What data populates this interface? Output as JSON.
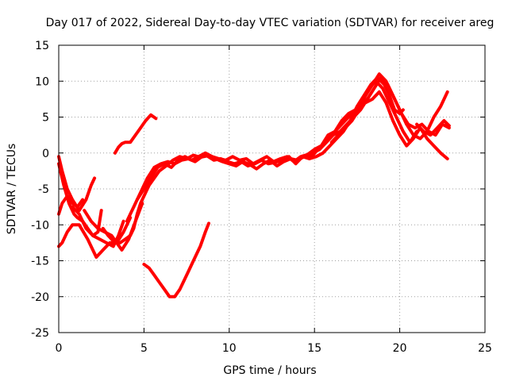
{
  "chart_data": {
    "type": "line",
    "title": "Day 017 of 2022, Sidereal Day-to-day VTEC variation (SDTVAR) for receiver areg",
    "xlabel": "GPS time / hours",
    "ylabel": "SDTVAR / TECUs",
    "xlim": [
      0,
      25
    ],
    "ylim": [
      -25,
      15
    ],
    "xticks": [
      0,
      5,
      10,
      15,
      20,
      25
    ],
    "yticks": [
      -25,
      -20,
      -15,
      -10,
      -5,
      0,
      5,
      10,
      15
    ],
    "xtick_labels": [
      "0",
      "5",
      "10",
      "15",
      "20",
      "25"
    ],
    "ytick_labels": [
      "-25",
      "-20",
      "-15",
      "-10",
      "-5",
      "0",
      "5",
      "10",
      "15"
    ],
    "grid": true,
    "series_color": "#ff0000",
    "series": [
      {
        "x": [
          0.0,
          0.2,
          0.5,
          0.8,
          1.2,
          1.6,
          1.9,
          2.1
        ],
        "y": [
          -0.5,
          -2.5,
          -5.0,
          -6.5,
          -8.0,
          -6.5,
          -4.5,
          -3.5
        ]
      },
      {
        "x": [
          0.0,
          0.3,
          0.6,
          0.9,
          1.1,
          1.4,
          1.7,
          2.0,
          2.3,
          2.5
        ],
        "y": [
          -1.5,
          -4.5,
          -7.0,
          -8.5,
          -9.0,
          -9.5,
          -10.5,
          -11.5,
          -11.0,
          -8.0
        ]
      },
      {
        "x": [
          0.0,
          0.2,
          0.5,
          0.8,
          1.2,
          1.7,
          2.2,
          2.6,
          3.0,
          3.4,
          3.8,
          4.2
        ],
        "y": [
          -13.0,
          -12.5,
          -11.0,
          -10.0,
          -10.0,
          -12.0,
          -14.5,
          -13.5,
          -12.5,
          -12.5,
          -11.0,
          -9.0
        ]
      },
      {
        "x": [
          0.0,
          0.2,
          0.5,
          0.8,
          1.1,
          1.4
        ],
        "y": [
          -8.5,
          -7.0,
          -6.0,
          -7.0,
          -7.5,
          -6.5
        ]
      },
      {
        "x": [
          0.8,
          1.2,
          1.6,
          2.0,
          2.4,
          2.8,
          3.2,
          3.5,
          3.8
        ],
        "y": [
          -7.5,
          -8.5,
          -10.5,
          -11.5,
          -12.0,
          -12.5,
          -13.0,
          -11.5,
          -9.5
        ]
      },
      {
        "x": [
          1.5,
          1.9,
          2.3,
          2.7,
          3.1,
          3.4,
          3.7,
          4.1,
          4.5,
          4.9
        ],
        "y": [
          -8.0,
          -9.5,
          -10.5,
          -11.0,
          -11.5,
          -12.5,
          -13.5,
          -12.0,
          -9.5,
          -7.0
        ]
      },
      {
        "x": [
          2.6,
          2.9,
          3.3,
          3.6,
          3.9,
          4.2,
          4.4,
          4.6,
          4.8,
          5.1,
          5.3,
          5.6,
          5.9,
          6.3,
          6.7,
          7.1,
          7.5,
          7.9,
          8.3,
          8.7,
          9.1,
          9.5,
          9.9,
          10.3,
          10.7,
          11.1,
          11.5,
          11.9,
          12.3,
          12.7,
          13.1,
          13.5,
          13.9,
          14.3,
          14.7,
          15.1,
          15.5,
          15.9,
          16.3,
          16.7,
          17.1,
          17.5,
          17.9,
          18.3,
          18.7,
          19.1,
          19.4,
          19.7,
          20.0,
          20.2
        ],
        "y": [
          -10.5,
          -11.5,
          -12.5,
          -12.5,
          -12.0,
          -11.5,
          -10.5,
          -8.5,
          -7.0,
          -5.5,
          -4.5,
          -3.5,
          -2.5,
          -1.8,
          -1.0,
          -0.5,
          -0.8,
          -0.3,
          -0.6,
          -0.4,
          -1.0,
          -0.8,
          -1.2,
          -1.5,
          -1.2,
          -1.8,
          -1.5,
          -1.0,
          -1.5,
          -1.3,
          -1.0,
          -0.5,
          -1.5,
          -0.5,
          -0.8,
          -0.5,
          0.0,
          1.0,
          2.0,
          3.0,
          4.5,
          6.5,
          8.0,
          9.5,
          10.5,
          9.5,
          8.0,
          6.0,
          5.5,
          6.0
        ]
      },
      {
        "x": [
          4.0,
          4.4,
          4.8,
          5.2,
          5.6,
          6.0,
          6.4,
          6.8,
          7.2,
          7.6,
          8.0,
          8.4,
          8.8,
          9.2,
          9.6,
          10.0,
          10.4,
          10.8,
          11.2,
          11.6,
          12.0,
          12.4,
          12.8,
          13.2,
          13.6,
          14.0,
          14.4,
          14.8,
          15.2,
          15.6,
          16.0,
          16.4,
          16.8,
          17.2,
          17.6,
          18.0,
          18.4,
          18.8,
          19.2,
          19.6,
          20.0,
          20.4,
          20.8,
          21.2,
          21.6,
          22.0,
          22.4,
          22.8
        ],
        "y": [
          -9.5,
          -7.5,
          -5.5,
          -3.5,
          -2.0,
          -1.5,
          -1.2,
          -1.5,
          -1.0,
          -0.8,
          -1.2,
          -0.5,
          -0.3,
          -0.8,
          -1.2,
          -1.5,
          -1.8,
          -1.2,
          -1.6,
          -2.2,
          -1.5,
          -1.0,
          -1.8,
          -1.2,
          -0.8,
          -1.0,
          -0.5,
          -0.6,
          0.5,
          1.5,
          2.5,
          3.5,
          4.5,
          5.5,
          6.5,
          7.0,
          7.5,
          8.5,
          7.0,
          4.5,
          2.5,
          1.0,
          2.0,
          3.5,
          2.0,
          1.0,
          0.0,
          -0.8
        ]
      },
      {
        "x": [
          4.6,
          5.0,
          5.4,
          5.8,
          6.2,
          6.6,
          7.0,
          7.4,
          7.8,
          8.2,
          8.6,
          9.0,
          9.4,
          9.8,
          10.2,
          10.6,
          11.0,
          11.4,
          11.8,
          12.2,
          12.6,
          13.0,
          13.4,
          13.8,
          14.2,
          14.6,
          15.0,
          15.4,
          15.8,
          16.2,
          16.6,
          17.0,
          17.4,
          17.8,
          18.2,
          18.6,
          19.0,
          19.4,
          19.8,
          20.2,
          20.6,
          21.0
        ],
        "y": [
          -6.5,
          -5.0,
          -3.5,
          -2.0,
          -1.5,
          -2.0,
          -1.0,
          -0.5,
          -1.0,
          -0.5,
          0.0,
          -0.5,
          -0.8,
          -1.0,
          -0.5,
          -1.0,
          -0.8,
          -1.5,
          -1.0,
          -0.5,
          -1.2,
          -0.8,
          -0.5,
          -1.2,
          -0.5,
          -0.2,
          0.5,
          1.0,
          2.5,
          3.0,
          4.5,
          5.5,
          6.0,
          7.5,
          9.0,
          10.0,
          9.0,
          7.0,
          5.0,
          3.0,
          1.5,
          3.0
        ]
      },
      {
        "x": [
          3.3,
          3.5,
          3.7,
          3.9,
          4.2,
          4.5,
          4.8,
          5.1,
          5.4,
          5.7
        ],
        "y": [
          0.0,
          0.8,
          1.3,
          1.5,
          1.5,
          2.5,
          3.5,
          4.5,
          5.3,
          4.8
        ]
      },
      {
        "x": [
          5.0,
          5.3,
          5.6,
          5.9,
          6.2,
          6.5,
          6.8,
          7.1,
          7.4,
          7.7,
          8.0,
          8.3,
          8.6,
          8.8
        ],
        "y": [
          -15.5,
          -16.0,
          -17.0,
          -18.0,
          -19.0,
          -20.0,
          -20.0,
          -19.0,
          -17.5,
          -16.0,
          -14.5,
          -13.0,
          -11.0,
          -9.8
        ]
      },
      {
        "x": [
          14.5,
          14.9,
          15.3,
          15.7,
          16.1,
          16.5,
          16.9,
          17.3,
          17.7,
          18.1,
          18.5,
          18.9,
          19.3,
          19.7,
          20.1,
          20.5,
          20.9,
          21.3,
          21.7,
          22.1,
          22.5,
          22.9
        ],
        "y": [
          -0.5,
          0.0,
          0.5,
          1.5,
          2.5,
          3.0,
          4.0,
          5.0,
          6.0,
          7.5,
          9.0,
          10.5,
          9.5,
          7.5,
          5.5,
          4.0,
          3.5,
          4.0,
          3.0,
          2.5,
          4.0,
          3.5
        ]
      },
      {
        "x": [
          16.0,
          16.4,
          16.8,
          17.2,
          17.6,
          18.0,
          18.4,
          18.8,
          19.2,
          19.6,
          20.0,
          20.4,
          20.8,
          21.2,
          21.6,
          22.0,
          22.4,
          22.8
        ],
        "y": [
          1.5,
          2.5,
          3.5,
          4.5,
          6.0,
          8.0,
          9.5,
          11.0,
          10.0,
          8.0,
          6.0,
          4.0,
          2.5,
          2.0,
          3.0,
          5.0,
          6.5,
          8.5
        ]
      },
      {
        "x": [
          21.0,
          21.4,
          21.8,
          22.2,
          22.6,
          22.9
        ],
        "y": [
          4.0,
          3.0,
          2.5,
          3.5,
          4.5,
          3.8
        ]
      }
    ]
  }
}
